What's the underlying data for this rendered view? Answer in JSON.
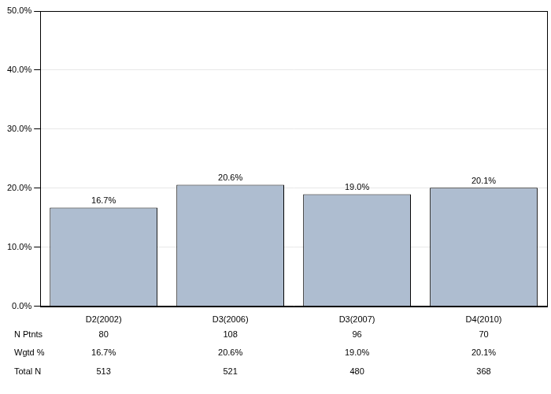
{
  "chart_data": {
    "type": "bar",
    "categories": [
      "D2(2002)",
      "D3(2006)",
      "D3(2007)",
      "D4(2010)"
    ],
    "values": [
      16.7,
      20.6,
      19.0,
      20.1
    ],
    "value_labels": [
      "16.7%",
      "20.6%",
      "19.0%",
      "20.1%"
    ],
    "data_labels": true,
    "color": "#aebdd0",
    "ylim": [
      0,
      50
    ],
    "yticks": [
      {
        "value": 0,
        "label": "0.0%"
      },
      {
        "value": 10,
        "label": "10.0%"
      },
      {
        "value": 20,
        "label": "20.0%"
      },
      {
        "value": 30,
        "label": "30.0%"
      },
      {
        "value": 40,
        "label": "40.0%"
      },
      {
        "value": 50,
        "label": "50.0%"
      }
    ],
    "grid": true,
    "table": {
      "rows": [
        {
          "label": "N Ptnts",
          "cells": [
            80,
            108,
            96,
            70
          ]
        },
        {
          "label": "Wgtd %",
          "cells": [
            "16.7%",
            "20.6%",
            "19.0%",
            "20.1%"
          ]
        },
        {
          "label": "Total N",
          "cells": [
            513,
            521,
            480,
            368
          ]
        }
      ]
    }
  }
}
